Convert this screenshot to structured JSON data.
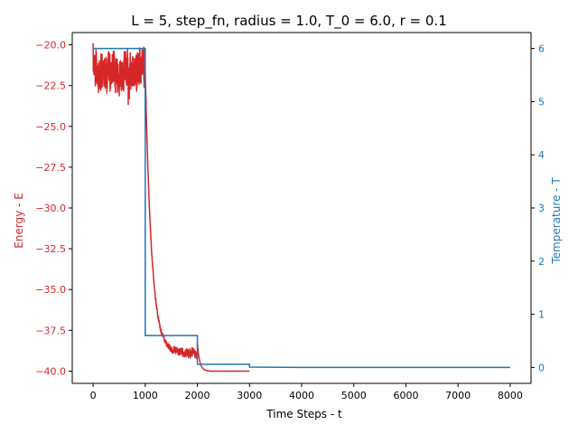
{
  "chart_data": {
    "type": "line",
    "title": "L = 5, step_fn, radius = 1.0, T_0 = 6.0, r = 0.1",
    "xlabel": "Time Steps - t",
    "ylabel_left": "Energy - E",
    "ylabel_right": "Temperature - T",
    "xlim": [
      -400,
      8400
    ],
    "ylim_left": [
      -40.75,
      -19.25
    ],
    "ylim_right": [
      -0.3,
      6.3
    ],
    "xticks": [
      0,
      1000,
      2000,
      3000,
      4000,
      5000,
      6000,
      7000,
      8000
    ],
    "xtick_labels": [
      "0",
      "1000",
      "2000",
      "3000",
      "4000",
      "5000",
      "6000",
      "7000",
      "8000"
    ],
    "yticks_left": [
      -20.0,
      -22.5,
      -25.0,
      -27.5,
      -30.0,
      -32.5,
      -35.0,
      -37.5,
      -40.0
    ],
    "ytick_labels_left": [
      "−20.0",
      "−22.5",
      "−25.0",
      "−27.5",
      "−30.0",
      "−32.5",
      "−35.0",
      "−37.5",
      "−40.0"
    ],
    "yticks_right": [
      0,
      1,
      2,
      3,
      4,
      5,
      6
    ],
    "ytick_labels_right": [
      "0",
      "1",
      "2",
      "3",
      "4",
      "5",
      "6"
    ],
    "grid": false,
    "colors": {
      "energy": "#d62728",
      "temperature": "#1f77b4",
      "axis": "#000000"
    },
    "series": [
      {
        "axis": "left",
        "color": "#d62728",
        "segments": [
          {
            "t_start": 0,
            "t_end": 1000,
            "mean": -21.6,
            "noise": 0.9
          },
          {
            "t_start": 1000,
            "t_end": 2000,
            "start": -21.5,
            "end": -38.9,
            "decay": 120,
            "floor": -38.9,
            "noise_early": 0.05,
            "noise_late": 0.25
          },
          {
            "t_start": 2000,
            "t_end": 2250,
            "start": -38.3,
            "end": -40.0,
            "decay": 45
          },
          {
            "t_start": 2250,
            "t_end": 3000,
            "value": -40.0
          }
        ]
      },
      {
        "axis": "right",
        "color": "#1f77b4",
        "x": [
          0,
          1000,
          1000,
          2000,
          2000,
          3000,
          3000,
          4000,
          8000
        ],
        "values": [
          6.0,
          6.0,
          0.6,
          0.6,
          0.06,
          0.06,
          0.006,
          0.0006,
          0.0006
        ]
      }
    ]
  }
}
